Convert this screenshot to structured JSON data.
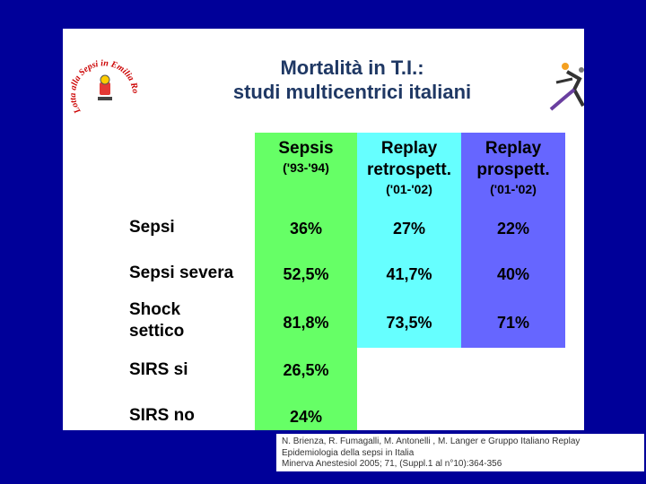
{
  "title": {
    "line1": "Mortalità in T.I.:",
    "line2": "studi multicentrici italiani"
  },
  "logo_text": "Lotta alla Sepsi in Emilia Romagna",
  "columns": [
    {
      "name": "Sepsis",
      "sub": "('93-'94)",
      "color": "#66ff66"
    },
    {
      "name": "Replay retrospett.",
      "line1": "Replay",
      "line2": "retrospett.",
      "sub": "('01-'02)",
      "color": "#66ffff"
    },
    {
      "name": "Replay prospett.",
      "line1": "Replay",
      "line2": "prospett.",
      "sub": "('01-'02)",
      "color": "#6666ff"
    }
  ],
  "rows": [
    {
      "label": "Sepsi",
      "values": [
        "36%",
        "27%",
        "22%"
      ]
    },
    {
      "label": "Sepsi severa",
      "values": [
        "52,5%",
        "41,7%",
        "40%"
      ]
    },
    {
      "label_line1": "Shock",
      "label_line2": "settico",
      "values": [
        "81,8%",
        "73,5%",
        "71%"
      ]
    },
    {
      "label": "SIRS si",
      "values": [
        "26,5%"
      ]
    },
    {
      "label": "SIRS no",
      "values": [
        "24%"
      ]
    }
  ],
  "reference": {
    "line1": "N. Brienza, R. Fumagalli, M. Antonelli , M. Langer e Gruppo Italiano Replay",
    "line2": "Epidemiologia della sepsi in Italia",
    "line3": "Minerva Anestesiol 2005; 71, (Suppl.1 al n°10):364-356"
  }
}
